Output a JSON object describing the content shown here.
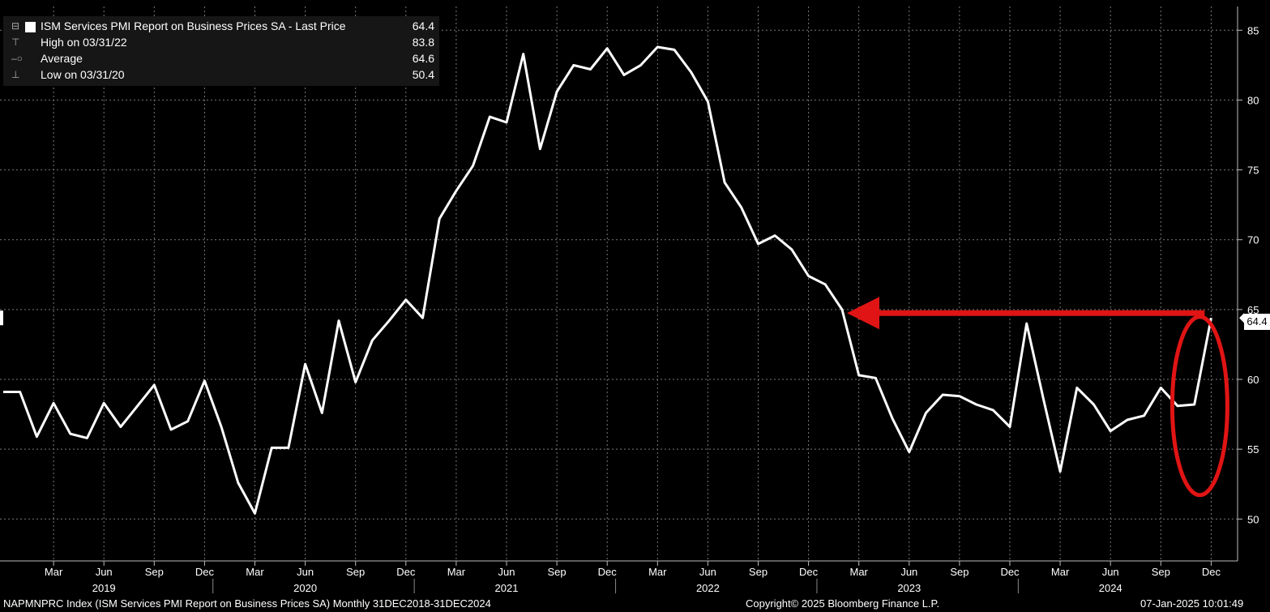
{
  "legend": {
    "title": "ISM Services PMI Report on Business Prices SA - Last Price",
    "last_value": "64.4",
    "high_label": "High on 03/31/22",
    "high_value": "83.8",
    "avg_label": "Average",
    "avg_value": "64.6",
    "low_label": "Low on 03/31/20",
    "low_value": "50.4"
  },
  "last_price_tag": "64.4",
  "footer": {
    "left": "NAPMNPRC Index (ISM Services PMI Report on Business Prices SA)  Monthly 31DEC2018-31DEC2024",
    "center": "Copyright© 2025 Bloomberg Finance L.P.",
    "right": "07-Jan-2025 10:01:49"
  },
  "colors": {
    "background": "#000000",
    "line": "#ffffff",
    "grid": "#7a7a7a",
    "annotation": "#e01414"
  },
  "chart_data": {
    "type": "line",
    "title": "ISM Services PMI Report on Business Prices SA - Last Price",
    "x_start": "2018-12",
    "frequency": "monthly",
    "x_tick_labels": [
      "Mar",
      "Jun",
      "Sep",
      "Dec",
      "Mar",
      "Jun",
      "Sep",
      "Dec",
      "Mar",
      "Jun",
      "Sep",
      "Dec",
      "Mar",
      "Jun",
      "Sep",
      "Dec",
      "Mar",
      "Jun",
      "Sep",
      "Dec",
      "Mar",
      "Jun",
      "Sep",
      "Dec"
    ],
    "year_labels": [
      "2019",
      "2020",
      "2021",
      "2022",
      "2023",
      "2024"
    ],
    "y_ticks": [
      50,
      55,
      60,
      65,
      70,
      75,
      80,
      85
    ],
    "ylim": [
      47,
      86.7
    ],
    "grid": true,
    "legend_position": "top-left",
    "series": [
      {
        "values": [
          59.1,
          59.1,
          55.9,
          58.3,
          56.1,
          55.8,
          58.3,
          56.6,
          58.1,
          59.6,
          56.4,
          57.0,
          59.9,
          56.6,
          52.6,
          50.4,
          55.1,
          55.1,
          61.1,
          57.6,
          64.2,
          59.8,
          62.8,
          64.2,
          65.7,
          64.4,
          71.5,
          73.5,
          75.3,
          78.8,
          78.4,
          83.3,
          76.5,
          80.6,
          82.5,
          82.2,
          83.7,
          81.8,
          82.5,
          83.8,
          83.6,
          82.0,
          79.9,
          74.1,
          72.3,
          69.7,
          70.3,
          69.3,
          67.4,
          66.8,
          65.0,
          60.3,
          60.1,
          57.2,
          54.8,
          57.6,
          58.9,
          58.8,
          58.2,
          57.8,
          56.6,
          64.0,
          58.6,
          53.4,
          59.4,
          58.2,
          56.3,
          57.1,
          57.4,
          59.4,
          58.1,
          58.2,
          64.4
        ]
      }
    ],
    "annotations": [
      {
        "type": "arrow",
        "color": "#e01414",
        "from_month": "2024-12",
        "to_month": "2023-02",
        "y": 64.4
      },
      {
        "type": "ellipse",
        "color": "#e01414",
        "around_month": "2024-12"
      }
    ]
  }
}
